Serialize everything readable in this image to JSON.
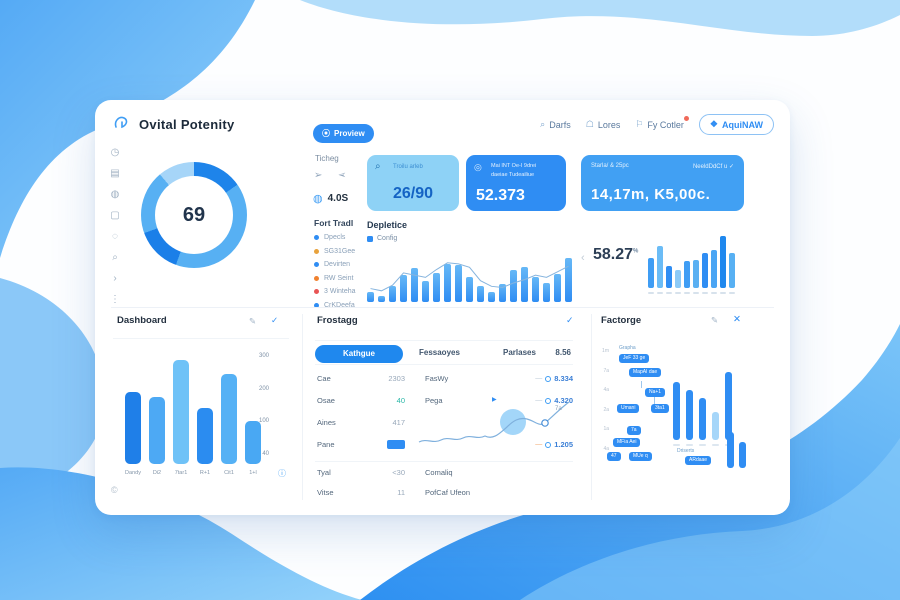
{
  "header": {
    "title": "Ovital Potenity",
    "actions": [
      {
        "label": "Darfs",
        "icon": "search",
        "badge": false,
        "primary": false
      },
      {
        "label": "Lores",
        "icon": "person",
        "badge": false,
        "primary": false
      },
      {
        "label": "Fy Cotler",
        "icon": "flag",
        "badge": true,
        "primary": false
      },
      {
        "label": "AquiNAW",
        "icon": "shield",
        "badge": false,
        "primary": true
      }
    ]
  },
  "sidebar": {
    "icons": [
      "clock",
      "card",
      "globe",
      "box",
      "circle",
      "search",
      "chevron",
      "dots"
    ]
  },
  "donut": {
    "value": "69",
    "colors": {
      "dark": "#1b7fe8",
      "mid": "#57b0f3",
      "light": "#a6d5f8"
    }
  },
  "controls": {
    "preview_label": "Proview",
    "ticheg_label": "Ticheg",
    "version": "4.0S",
    "legend_title": "Fort Tradl",
    "legend": [
      {
        "label": "Dpecls",
        "color": "#2f8df3"
      },
      {
        "label": "SG31Gee",
        "color": "#e8a23c"
      },
      {
        "label": "Devirten",
        "color": "#2f8df3"
      },
      {
        "label": "RW Seint",
        "color": "#f0812f"
      },
      {
        "label": "3 Winteha",
        "color": "#e85454"
      },
      {
        "label": "CrKDeefa",
        "color": "#2f8df3"
      }
    ]
  },
  "stats": [
    {
      "label": "Troilu arleb",
      "value": "26/90"
    },
    {
      "label_line1": "Mai INT Oe-I 9drei",
      "label_line2": "daeiae Tudeailiue",
      "value": "52.373"
    },
    {
      "label_left": "Starla/ & 25pc",
      "label_right": "NeeldDdCf u",
      "value": "14,17m, K5,00c."
    }
  ],
  "chart_data": [
    {
      "type": "bar",
      "name": "depletion",
      "title": "Depletice",
      "legend": [
        "Config"
      ],
      "values": [
        18,
        10,
        28,
        48,
        60,
        38,
        52,
        68,
        66,
        44,
        28,
        18,
        32,
        58,
        62,
        44,
        34,
        50,
        78
      ],
      "line": [
        24,
        20,
        30,
        52,
        48,
        44,
        58,
        70,
        68,
        62,
        38,
        28,
        26,
        34,
        40,
        48,
        44,
        54,
        64
      ]
    },
    {
      "type": "bar",
      "name": "rate",
      "value": "58.27",
      "unit": "%",
      "values": [
        30,
        42,
        22,
        18,
        27,
        28,
        35,
        38,
        52,
        35
      ],
      "colors": [
        "#3f9df4",
        "#6bbcf6",
        "#2f8df3",
        "#8ccaf7",
        "#3f9df4",
        "#5ab0f2",
        "#2f8df3",
        "#4aa5f4",
        "#1f88ee",
        "#57b0f3"
      ]
    },
    {
      "type": "bar",
      "name": "dashboard",
      "title": "Dashboard",
      "categories": [
        "Dandy",
        "Di2",
        "7tar1",
        "R+1",
        "Cit1",
        "1+l"
      ],
      "values": [
        200,
        185,
        290,
        155,
        250,
        120
      ],
      "colors": [
        "#1f7fe8",
        "#4da9f4",
        "#6fc2f7",
        "#2b8cf0",
        "#55b1f5",
        "#49a8f3"
      ],
      "yticks": [
        "300",
        "200",
        "100",
        "40"
      ],
      "ylim": [
        0,
        300
      ]
    },
    {
      "type": "bar",
      "name": "factorge-main",
      "values": [
        58,
        50,
        42,
        28,
        68
      ],
      "colors": [
        "#2f8df3",
        "#2f8df3",
        "#2f8df3",
        "#a6d6f9",
        "#2f8df3"
      ]
    },
    {
      "type": "bar",
      "name": "factorge-small",
      "values": [
        36,
        26
      ],
      "colors": [
        "#2f8df3",
        "#2f8df3"
      ]
    }
  ],
  "frostagg": {
    "title": "Frostagg",
    "tab": "Kathgue",
    "col_headers": [
      "Fessaoyes",
      "Parlases",
      "8.56"
    ],
    "rows": [
      {
        "label": "Cae",
        "value": "2303",
        "name": "FasWy",
        "amount": "8.334"
      },
      {
        "label": "Osae",
        "value": "40",
        "name": "Pega",
        "amount": "4.320"
      },
      {
        "label": "Aines",
        "value": "417",
        "name": "",
        "amount": "7a"
      },
      {
        "label": "Pane",
        "value": "",
        "name": "",
        "amount": "1.205"
      },
      {
        "label": "Tyal",
        "value": "<30",
        "name": "Comaliq",
        "amount": ""
      },
      {
        "label": "Vitse",
        "value": "11",
        "name": "PofCaf Ufeon",
        "amount": ""
      }
    ]
  },
  "factorge": {
    "title": "Factorge",
    "group1_label": "Grapha",
    "nodes1": [
      "JeF 33 ge",
      "MapAI dae",
      "Na+1",
      "Umani",
      "3ta1"
    ],
    "nodes2": [
      "7a",
      "MFia Aei",
      "47",
      "MUe q"
    ],
    "group2_label": "Driserts",
    "node3": "ARdaae",
    "yticks": [
      "1m",
      "7a",
      "4a",
      "2a",
      "1a",
      "4a"
    ]
  },
  "accent_colors": {
    "primary": "#2f8df3",
    "dark": "#1f7fe8",
    "light": "#8ed2f6",
    "alert": "#f06a5a",
    "teal": "#2bb8a8"
  }
}
